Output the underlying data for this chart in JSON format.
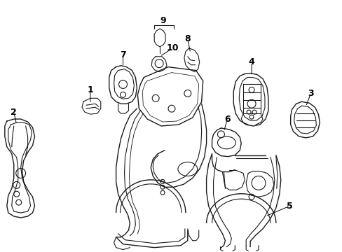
{
  "background_color": "#ffffff",
  "line_color": "#1a1a1a",
  "line_width": 0.8,
  "figsize": [
    4.89,
    3.6
  ],
  "dpi": 100
}
